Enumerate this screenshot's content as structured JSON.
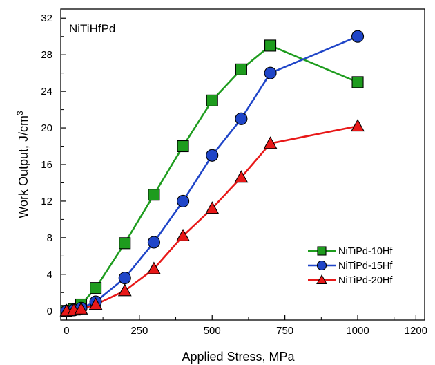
{
  "chart_data": {
    "type": "line",
    "annotation": "NiTiHfPd",
    "xlabel": "Applied Stress, MPa",
    "ylabel_main": "Work Output, J/cm",
    "ylabel_sup": "3",
    "xlim": [
      -20,
      1230
    ],
    "ylim": [
      -1,
      33
    ],
    "x_ticks": [
      0,
      250,
      500,
      750,
      1000,
      1200
    ],
    "x_tick_labels": [
      "0",
      "250",
      "500",
      "750",
      "1000",
      "1200"
    ],
    "y_ticks": [
      0,
      4,
      8,
      12,
      16,
      20,
      24,
      28,
      32
    ],
    "y_tick_labels": [
      "0",
      "4",
      "8",
      "12",
      "16",
      "20",
      "24",
      "28",
      "32"
    ],
    "grid": false,
    "legend_position": "bottom-right",
    "series": [
      {
        "name": "NiTiPd-10Hf",
        "marker": "square",
        "color": "#1e9c1e",
        "x": [
          0,
          25,
          50,
          100,
          200,
          300,
          400,
          500,
          600,
          700,
          1000
        ],
        "y": [
          0,
          0.2,
          0.7,
          2.5,
          7.4,
          12.7,
          18.0,
          23.0,
          26.4,
          29.0,
          25.0
        ]
      },
      {
        "name": "NiTiPd-15Hf",
        "marker": "circle",
        "color": "#1f45c8",
        "x": [
          0,
          25,
          50,
          100,
          200,
          300,
          400,
          500,
          600,
          700,
          1000
        ],
        "y": [
          0,
          0.1,
          0.3,
          1.0,
          3.6,
          7.5,
          12.0,
          17.0,
          21.0,
          26.0,
          30.0
        ]
      },
      {
        "name": "NiTiPd-20Hf",
        "marker": "triangle",
        "color": "#e81818",
        "x": [
          0,
          25,
          50,
          100,
          200,
          300,
          400,
          500,
          600,
          700,
          1000
        ],
        "y": [
          0,
          0.1,
          0.2,
          0.7,
          2.2,
          4.6,
          8.2,
          11.2,
          14.6,
          18.3,
          20.2
        ]
      }
    ]
  }
}
